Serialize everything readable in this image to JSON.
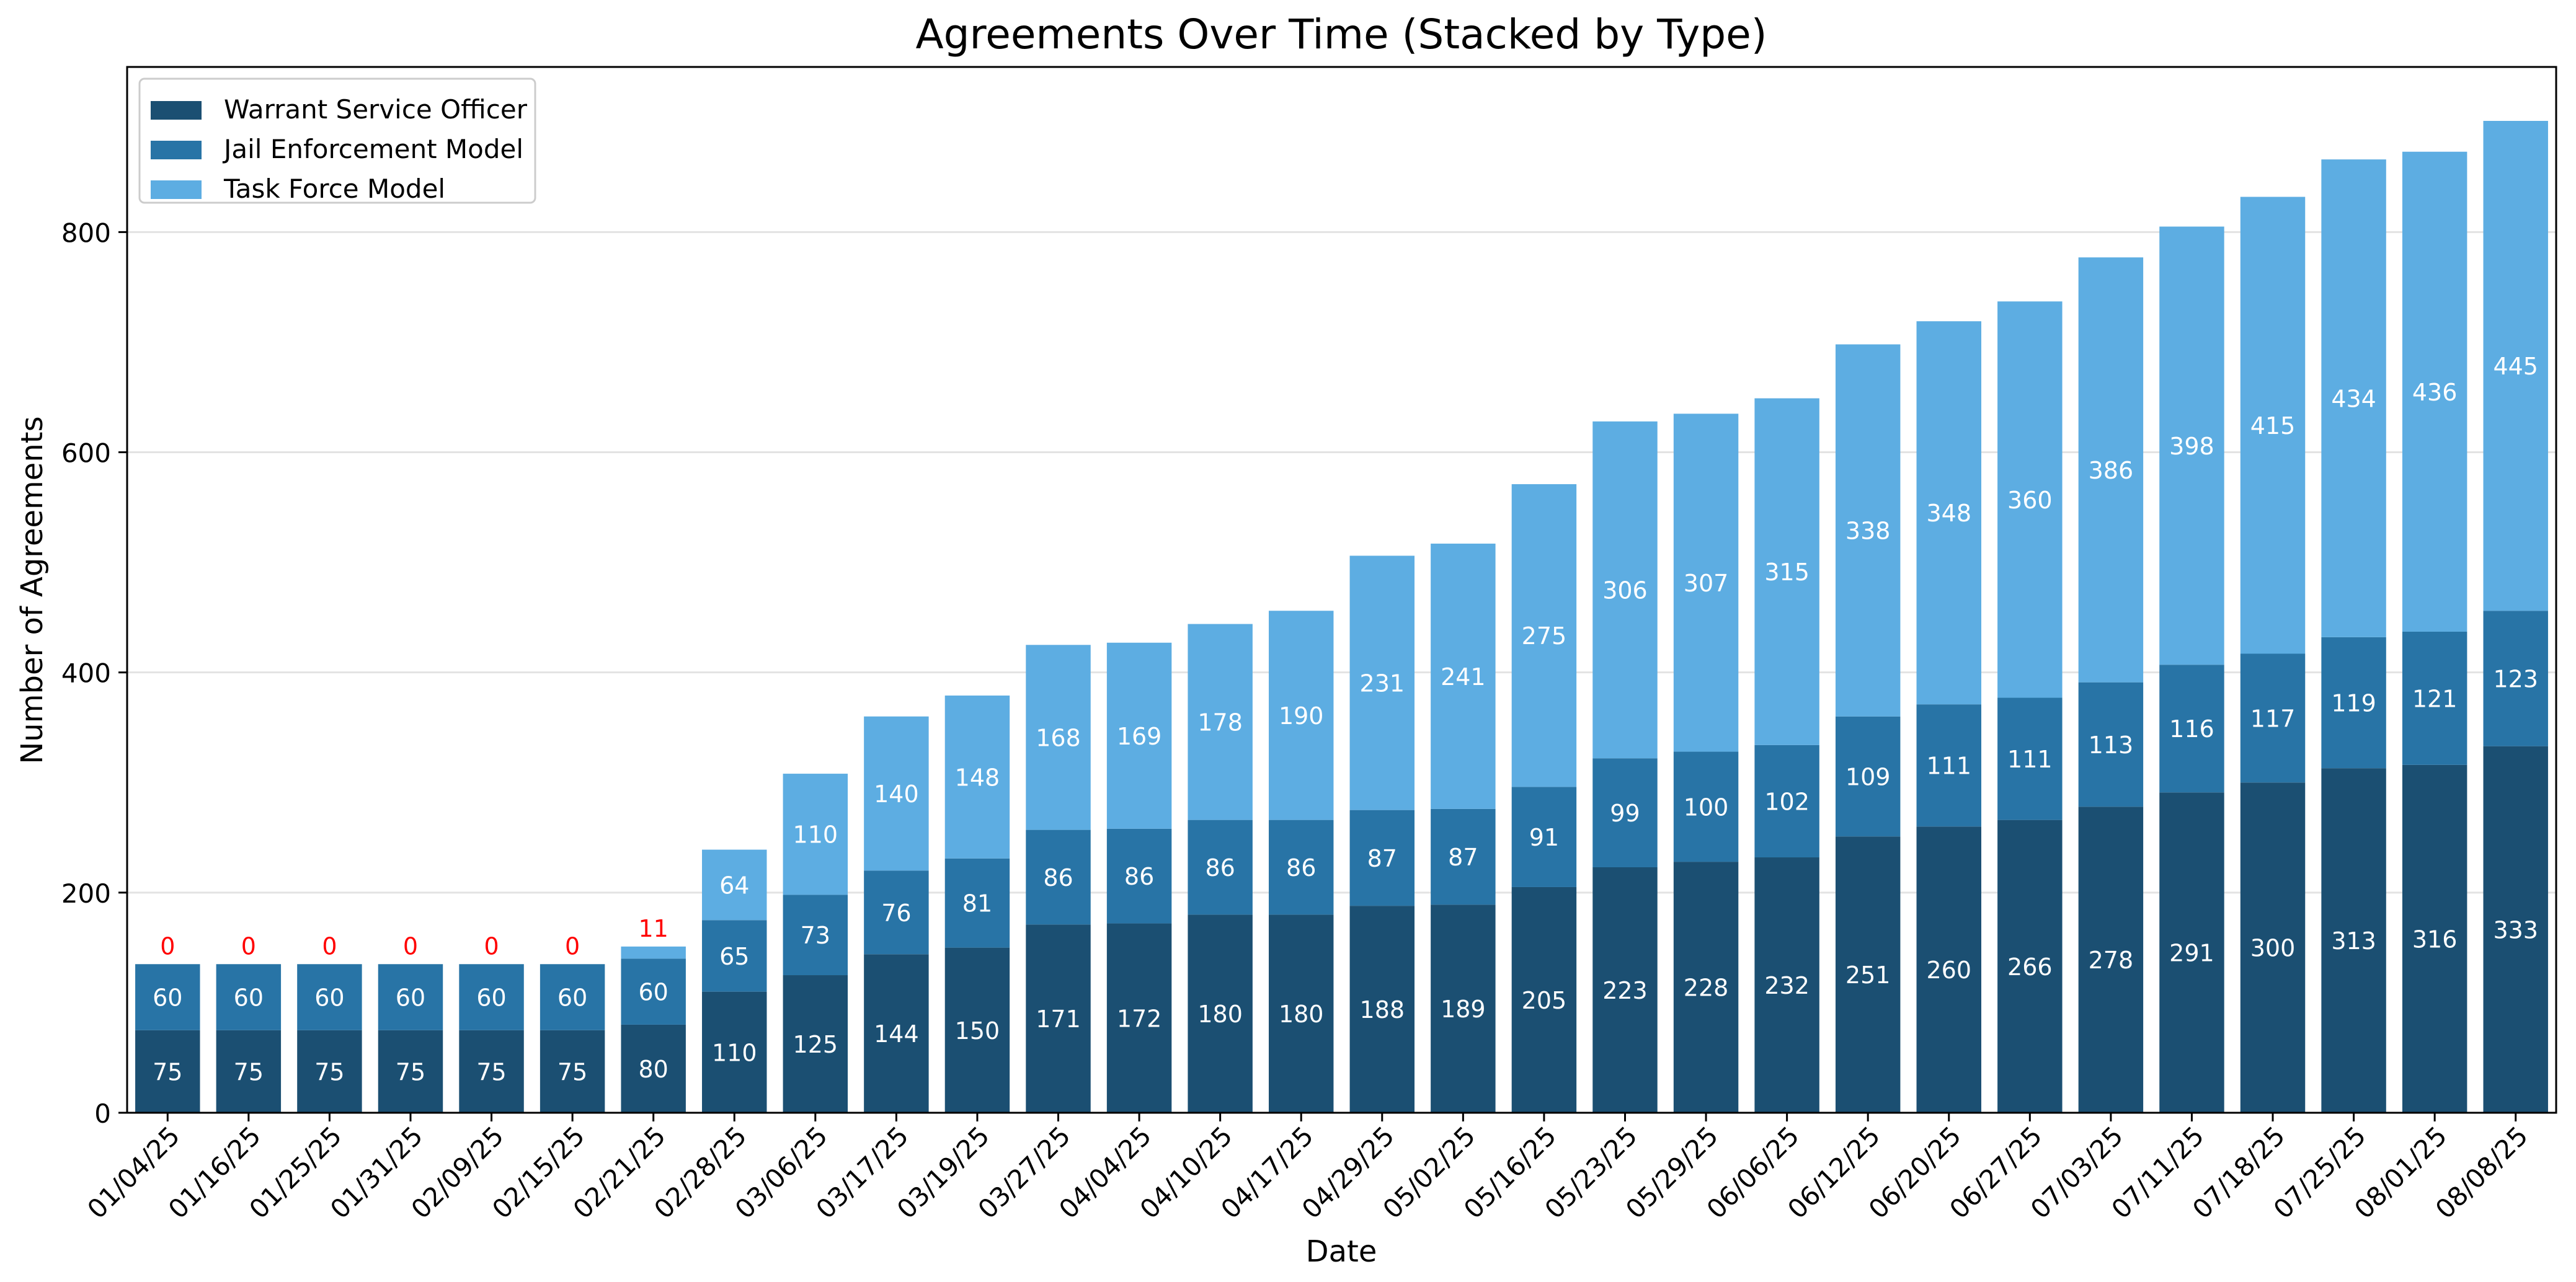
{
  "chart_data": {
    "type": "bar",
    "stacked": true,
    "title": "Agreements Over Time (Stacked by Type)",
    "xlabel": "Date",
    "ylabel": "Number of Agreements",
    "ylim": [
      0,
      950
    ],
    "yticks": [
      0,
      200,
      400,
      600,
      800
    ],
    "grid": "horizontal",
    "legend_position": "top-left",
    "categories": [
      "01/04/25",
      "01/16/25",
      "01/25/25",
      "01/31/25",
      "02/09/25",
      "02/15/25",
      "02/21/25",
      "02/28/25",
      "03/06/25",
      "03/17/25",
      "03/19/25",
      "03/27/25",
      "04/04/25",
      "04/10/25",
      "04/17/25",
      "04/29/25",
      "05/02/25",
      "05/16/25",
      "05/23/25",
      "05/29/25",
      "06/06/25",
      "06/12/25",
      "06/20/25",
      "06/27/25",
      "07/03/25",
      "07/11/25",
      "07/18/25",
      "07/25/25",
      "08/01/25",
      "08/08/25"
    ],
    "series": [
      {
        "name": "Warrant Service Officer",
        "color": "#1b4f72",
        "values": [
          75,
          75,
          75,
          75,
          75,
          75,
          80,
          110,
          125,
          144,
          150,
          171,
          172,
          180,
          180,
          188,
          189,
          205,
          223,
          228,
          232,
          251,
          260,
          266,
          278,
          291,
          300,
          313,
          316,
          333
        ]
      },
      {
        "name": "Jail Enforcement Model",
        "color": "#2874a6",
        "values": [
          60,
          60,
          60,
          60,
          60,
          60,
          60,
          65,
          73,
          76,
          81,
          86,
          86,
          86,
          86,
          87,
          87,
          91,
          99,
          100,
          102,
          109,
          111,
          111,
          113,
          116,
          117,
          119,
          121,
          123
        ]
      },
      {
        "name": "Task Force Model",
        "color": "#5dade2",
        "values": [
          0,
          0,
          0,
          0,
          0,
          0,
          11,
          64,
          110,
          140,
          148,
          168,
          169,
          178,
          190,
          231,
          241,
          275,
          306,
          307,
          315,
          338,
          348,
          360,
          386,
          398,
          415,
          434,
          436,
          445
        ]
      }
    ],
    "label_colors": {
      "inside": "#ffffff",
      "small": "#ff0000"
    }
  }
}
